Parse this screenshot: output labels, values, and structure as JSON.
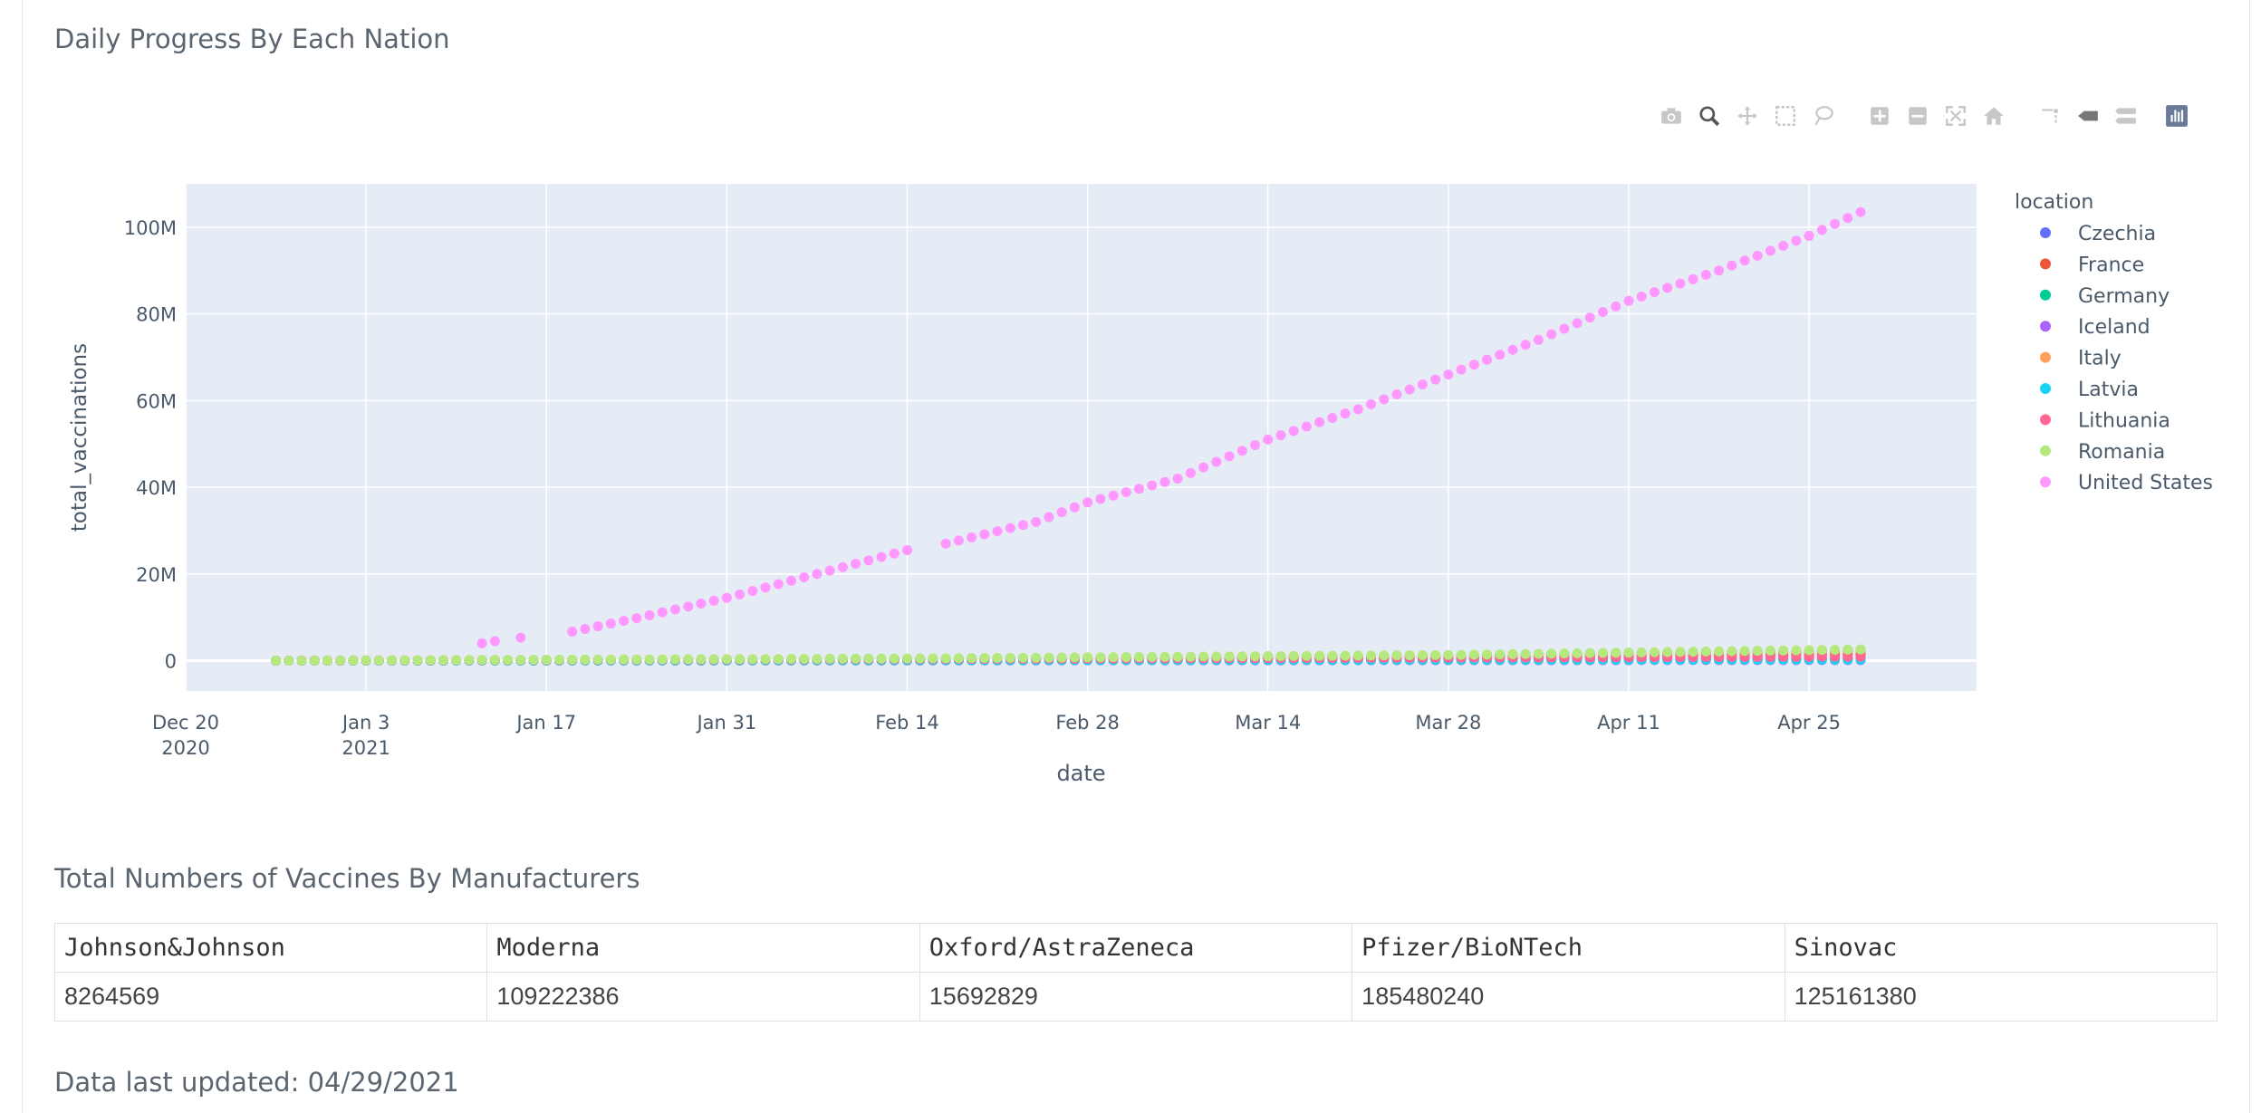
{
  "page": {
    "chart_heading": "Daily Progress By Each Nation",
    "table_heading": "Total Numbers of Vaccines By Manufacturers",
    "updated_text": "Data last updated: 04/29/2021"
  },
  "modebar": {
    "buttons": [
      "camera-icon",
      "zoom-icon",
      "pan-icon",
      "box-select-icon",
      "lasso-select-icon",
      "zoom-in-icon",
      "zoom-out-icon",
      "autoscale-icon",
      "reset-axes-icon",
      "spike-lines-icon",
      "hover-closest-icon",
      "hover-compare-icon",
      "plotly-logo-icon"
    ]
  },
  "chart_data": {
    "type": "scatter",
    "x_axis": {
      "title": "date",
      "range": [
        "2020-12-20",
        "2021-05-08"
      ],
      "ticks": [
        {
          "date": "2020-12-20",
          "label": "Dec 20",
          "sub": "2020"
        },
        {
          "date": "2021-01-03",
          "label": "Jan 3",
          "sub": "2021"
        },
        {
          "date": "2021-01-17",
          "label": "Jan 17",
          "sub": ""
        },
        {
          "date": "2021-01-31",
          "label": "Jan 31",
          "sub": ""
        },
        {
          "date": "2021-02-14",
          "label": "Feb 14",
          "sub": ""
        },
        {
          "date": "2021-02-28",
          "label": "Feb 28",
          "sub": ""
        },
        {
          "date": "2021-03-14",
          "label": "Mar 14",
          "sub": ""
        },
        {
          "date": "2021-03-28",
          "label": "Mar 28",
          "sub": ""
        },
        {
          "date": "2021-04-11",
          "label": "Apr 11",
          "sub": ""
        },
        {
          "date": "2021-04-25",
          "label": "Apr 25",
          "sub": ""
        }
      ]
    },
    "y_axis": {
      "title": "total_vaccinations",
      "range": [
        -7000000,
        110000000
      ],
      "ticks": [
        {
          "value": 0,
          "label": "0"
        },
        {
          "value": 20000000,
          "label": "20M"
        },
        {
          "value": 40000000,
          "label": "40M"
        },
        {
          "value": 60000000,
          "label": "60M"
        },
        {
          "value": 80000000,
          "label": "80M"
        },
        {
          "value": 100000000,
          "label": "100M"
        }
      ]
    },
    "grid": true,
    "legend": {
      "title": "location",
      "position": "right"
    },
    "series": [
      {
        "name": "Czechia",
        "color": "#636efa",
        "start": "2020-12-27",
        "end": "2021-04-29",
        "points": [
          [
            "2020-12-27",
            0
          ],
          [
            "2021-02-14",
            300000
          ],
          [
            "2021-03-28",
            1000000
          ],
          [
            "2021-04-29",
            2200000
          ]
        ]
      },
      {
        "name": "France",
        "color": "#ef553b",
        "start": "2020-12-27",
        "end": "2021-04-29",
        "points": [
          [
            "2020-12-27",
            0
          ],
          [
            "2021-02-14",
            200000
          ],
          [
            "2021-03-28",
            700000
          ],
          [
            "2021-04-29",
            1500000
          ]
        ]
      },
      {
        "name": "Germany",
        "color": "#00cc96",
        "start": "2020-12-27",
        "end": "2021-04-29",
        "points": [
          [
            "2020-12-27",
            0
          ],
          [
            "2021-02-14",
            60000
          ],
          [
            "2021-03-28",
            180000
          ],
          [
            "2021-04-29",
            400000
          ]
        ]
      },
      {
        "name": "Iceland",
        "color": "#ab63fa",
        "start": "2020-12-27",
        "end": "2021-04-29",
        "points": [
          [
            "2020-12-27",
            0
          ],
          [
            "2021-04-29",
            140000
          ]
        ]
      },
      {
        "name": "Italy",
        "color": "#ffa15a",
        "start": "2020-12-27",
        "end": "2021-04-29",
        "points": [
          [
            "2020-12-27",
            0
          ],
          [
            "2021-02-14",
            400000
          ],
          [
            "2021-03-28",
            1200000
          ],
          [
            "2021-04-29",
            2300000
          ]
        ]
      },
      {
        "name": "Latvia",
        "color": "#19d3f3",
        "start": "2020-12-27",
        "end": "2021-04-29",
        "points": [
          [
            "2020-12-27",
            0
          ],
          [
            "2021-04-29",
            250000
          ]
        ]
      },
      {
        "name": "Lithuania",
        "color": "#ff6692",
        "start": "2020-12-27",
        "end": "2021-04-29",
        "points": [
          [
            "2020-12-27",
            0
          ],
          [
            "2021-04-29",
            900000
          ]
        ]
      },
      {
        "name": "Romania",
        "color": "#b6e880",
        "start": "2020-12-27",
        "end": "2021-04-29",
        "points": [
          [
            "2020-12-27",
            0
          ],
          [
            "2021-02-14",
            500000
          ],
          [
            "2021-03-28",
            1300000
          ],
          [
            "2021-04-29",
            2600000
          ]
        ]
      },
      {
        "name": "United States",
        "color": "#ff97ff",
        "start": "2021-01-12",
        "end": "2021-04-29",
        "gaps": [
          "2021-01-14",
          "2021-01-16",
          "2021-01-17",
          "2021-01-18",
          "2021-02-15",
          "2021-02-16"
        ],
        "points": [
          [
            "2021-01-12",
            4000000
          ],
          [
            "2021-01-13",
            4500000
          ],
          [
            "2021-01-15",
            5300000
          ],
          [
            "2021-01-19",
            6700000
          ],
          [
            "2021-01-24",
            9800000
          ],
          [
            "2021-01-31",
            14500000
          ],
          [
            "2021-02-07",
            20000000
          ],
          [
            "2021-02-14",
            25500000
          ],
          [
            "2021-02-17",
            27000000
          ],
          [
            "2021-02-24",
            32000000
          ],
          [
            "2021-02-28",
            36500000
          ],
          [
            "2021-03-07",
            42000000
          ],
          [
            "2021-03-14",
            51000000
          ],
          [
            "2021-03-21",
            58000000
          ],
          [
            "2021-03-28",
            66000000
          ],
          [
            "2021-04-04",
            74000000
          ],
          [
            "2021-04-11",
            83000000
          ],
          [
            "2021-04-18",
            90000000
          ],
          [
            "2021-04-25",
            98000000
          ],
          [
            "2021-04-29",
            103500000
          ]
        ]
      }
    ]
  },
  "table": {
    "headers": [
      "Johnson&Johnson",
      "Moderna",
      "Oxford/AstraZeneca",
      "Pfizer/BioNTech",
      "Sinovac"
    ],
    "values": [
      "8264569",
      "109222386",
      "15692829",
      "185480240",
      "125161380"
    ]
  }
}
